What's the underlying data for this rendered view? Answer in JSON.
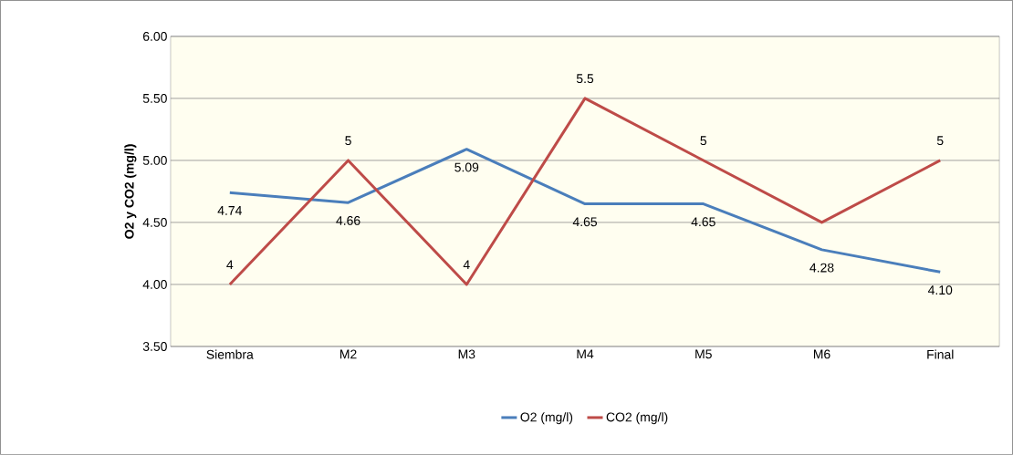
{
  "chart_data": {
    "type": "line",
    "ylabel": "O2 y CO2 (mg/l)",
    "categories": [
      "Siembra",
      "M2",
      "M3",
      "M4",
      "M5",
      "M6",
      "Final"
    ],
    "series": [
      {
        "name": "O2 (mg/l)",
        "color": "#4a7ebb",
        "values": [
          4.74,
          4.66,
          5.09,
          4.65,
          4.65,
          4.28,
          4.1
        ],
        "value_labels": [
          "4.74",
          "4.66",
          "5.09",
          "4.65",
          "4.65",
          "4.28",
          "4.10"
        ]
      },
      {
        "name": "CO2 (mg/l)",
        "color": "#be4b48",
        "values": [
          4,
          5,
          4,
          5.5,
          5,
          4.5,
          5
        ],
        "value_labels": [
          "4",
          "5",
          "4",
          "5.5",
          "5",
          null,
          "5"
        ]
      }
    ],
    "ylim": [
      3.5,
      6
    ],
    "yticks": [
      {
        "value": 3.5,
        "label": "3.50"
      },
      {
        "value": 4,
        "label": "4.00"
      },
      {
        "value": 4.5,
        "label": "4.50"
      },
      {
        "value": 5,
        "label": "5.00"
      },
      {
        "value": 5.5,
        "label": "5.50"
      },
      {
        "value": 6,
        "label": "6.00"
      }
    ],
    "grid": "y",
    "legend": "bottom",
    "marker": "none",
    "line_style": "solid"
  }
}
